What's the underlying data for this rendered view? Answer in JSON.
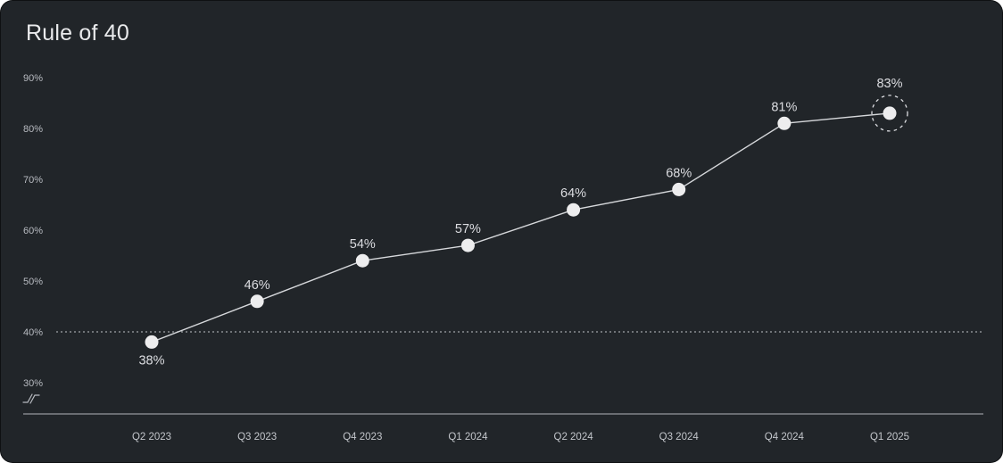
{
  "title": "Rule of 40",
  "colors": {
    "card_bg": "#212529",
    "title_text": "#e9eaec",
    "axis_label": "#b8bbc1",
    "x_axis_label": "#c3c6cb",
    "data_label": "#dcdde1",
    "trend_line": "#d6d8db",
    "point_fill": "#ededee",
    "threshold_line": "#a0a3a9",
    "axis_line": "#82858b",
    "highlight_ring": "#dcdde1"
  },
  "chart_data": {
    "type": "line",
    "title": "Rule of 40",
    "categories": [
      "Q2 2023",
      "Q3 2023",
      "Q4 2023",
      "Q1 2024",
      "Q2 2024",
      "Q3 2024",
      "Q4 2024",
      "Q1 2025"
    ],
    "values": [
      38,
      46,
      54,
      57,
      64,
      68,
      81,
      83
    ],
    "point_labels": [
      "38%",
      "46%",
      "54%",
      "57%",
      "64%",
      "68%",
      "81%",
      "83%"
    ],
    "unit": "%",
    "xlabel": "",
    "ylabel": "",
    "y_ticks": [
      "90%",
      "80%",
      "70%",
      "60%",
      "50%",
      "40%",
      "30%"
    ],
    "ylim": [
      30,
      90
    ],
    "threshold_value": 40,
    "threshold_style": "dotted",
    "axis_break_below_30": true,
    "highlighted_point_index": 7,
    "highlighted_point_label": "83%",
    "grid": "off",
    "legend": "none"
  }
}
